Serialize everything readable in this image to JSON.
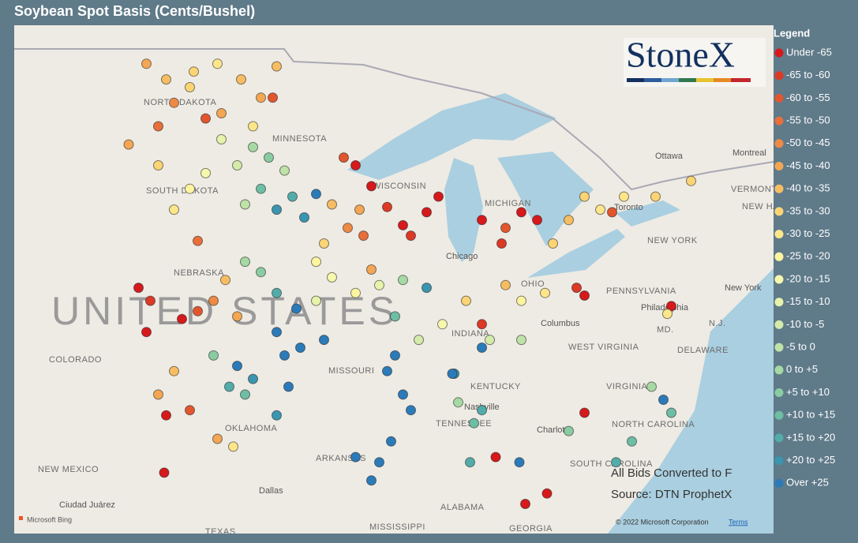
{
  "header": {
    "title": "Soybean Spot Basis (Cents/Bushel)"
  },
  "legend": {
    "title": "Legend",
    "entries": [
      {
        "label": "Under -65",
        "color": "#d7191c",
        "from": null,
        "to": -65
      },
      {
        "label": "-65 to -60",
        "color": "#dc3a25",
        "from": -65,
        "to": -60
      },
      {
        "label": "-60 to -55",
        "color": "#e2562e",
        "from": -60,
        "to": -55
      },
      {
        "label": "-55 to -50",
        "color": "#e86f3a",
        "from": -55,
        "to": -50
      },
      {
        "label": "-50 to -45",
        "color": "#ee8a45",
        "from": -50,
        "to": -45
      },
      {
        "label": "-45 to -40",
        "color": "#f3a653",
        "from": -45,
        "to": -40
      },
      {
        "label": "-40 to -35",
        "color": "#f7bd62",
        "from": -40,
        "to": -35
      },
      {
        "label": "-35 to -30",
        "color": "#fbd475",
        "from": -35,
        "to": -30
      },
      {
        "label": "-30 to -25",
        "color": "#fde68a",
        "from": -30,
        "to": -25
      },
      {
        "label": "-25 to -20",
        "color": "#fef5a0",
        "from": -25,
        "to": -20
      },
      {
        "label": "-20 to -15",
        "color": "#f6f8ad",
        "from": -20,
        "to": -15
      },
      {
        "label": "-15 to -10",
        "color": "#e7f2ab",
        "from": -15,
        "to": -10
      },
      {
        "label": "-10 to -5",
        "color": "#d4ebaa",
        "from": -10,
        "to": -5
      },
      {
        "label": "-5 to 0",
        "color": "#bfe3a6",
        "from": -5,
        "to": 0
      },
      {
        "label": "0 to +5",
        "color": "#a6d9a4",
        "from": 0,
        "to": 5
      },
      {
        "label": "+5 to +10",
        "color": "#8acca2",
        "from": 5,
        "to": 10
      },
      {
        "label": "+10 to +15",
        "color": "#6dbea4",
        "from": 10,
        "to": 15
      },
      {
        "label": "+15 to +20",
        "color": "#52aca9",
        "from": 15,
        "to": 20
      },
      {
        "label": "+20 to +25",
        "color": "#3a96b0",
        "from": 20,
        "to": 25
      },
      {
        "label": "Over +25",
        "color": "#2b7bba",
        "from": 25,
        "to": null
      }
    ]
  },
  "logo": "StoneX",
  "annotations": [
    "All Bids Converted to F",
    "Source: DTN ProphetX"
  ],
  "footer": {
    "bing": "Microsoft Bing",
    "copyright": "© 2022 Microsoft Corporation",
    "terms": "Terms"
  },
  "map_labels": [
    "NORTH DAKOTA",
    "SOUTH DAKOTA",
    "MINNESOTA",
    "WISCONSIN",
    "MICHIGAN",
    "NEBRASKA",
    "UNITED STATES",
    "COLORADO",
    "MISSOURI",
    "KENTUCKY",
    "TENNESSEE",
    "OKLAHOMA",
    "ARKANSAS",
    "NEW MEXICO",
    "ALABAMA",
    "GEORGIA",
    "MISSISSIPPI",
    "TEXAS",
    "PENNSYLVANIA",
    "NEW YORK",
    "VIRGINIA",
    "WEST VIRGINIA",
    "NORTH CAROLINA",
    "SOUTH CAROLINA",
    "DELAWARE",
    "MD.",
    "N.J.",
    "VERMONT",
    "NEW HAMPSHIRE",
    "Ottawa",
    "Montreal",
    "Toronto",
    "Chicago",
    "Columbus",
    "Philadelphia",
    "New York",
    "Nashville",
    "Charlotte",
    "Dallas",
    "Ciudad Juárez",
    "INDIANA",
    "OHIO"
  ],
  "map": {
    "points": [
      {
        "lon": -103.5,
        "lat": 49.4,
        "basis": -45
      },
      {
        "lon": -102.5,
        "lat": 48.8,
        "basis": -40
      },
      {
        "lon": -101.1,
        "lat": 49.1,
        "basis": -35
      },
      {
        "lon": -99.9,
        "lat": 49.4,
        "basis": -30
      },
      {
        "lon": -98.7,
        "lat": 48.8,
        "basis": -40
      },
      {
        "lon": -97.7,
        "lat": 48.1,
        "basis": -45
      },
      {
        "lon": -96.9,
        "lat": 49.3,
        "basis": -40
      },
      {
        "lon": -102.1,
        "lat": 47.9,
        "basis": -50
      },
      {
        "lon": -99.7,
        "lat": 47.5,
        "basis": -45
      },
      {
        "lon": -102.9,
        "lat": 47.0,
        "basis": -55
      },
      {
        "lon": -100.5,
        "lat": 47.3,
        "basis": -60
      },
      {
        "lon": -98.1,
        "lat": 47.0,
        "basis": -30
      },
      {
        "lon": -97.1,
        "lat": 48.1,
        "basis": -60
      },
      {
        "lon": -101.3,
        "lat": 48.5,
        "basis": -35
      },
      {
        "lon": -98.1,
        "lat": 46.2,
        "basis": 0
      },
      {
        "lon": -97.3,
        "lat": 45.8,
        "basis": 5
      },
      {
        "lon": -96.5,
        "lat": 45.3,
        "basis": -5
      },
      {
        "lon": -98.9,
        "lat": 45.5,
        "basis": -10
      },
      {
        "lon": -97.7,
        "lat": 44.6,
        "basis": 10
      },
      {
        "lon": -96.9,
        "lat": 43.8,
        "basis": 20
      },
      {
        "lon": -96.1,
        "lat": 44.3,
        "basis": 15
      },
      {
        "lon": -94.9,
        "lat": 44.4,
        "basis": 25
      },
      {
        "lon": -95.5,
        "lat": 43.5,
        "basis": 20
      },
      {
        "lon": -98.5,
        "lat": 44.0,
        "basis": -5
      },
      {
        "lon": -99.7,
        "lat": 46.5,
        "basis": -15
      },
      {
        "lon": -102.9,
        "lat": 45.5,
        "basis": -35
      },
      {
        "lon": -101.3,
        "lat": 44.6,
        "basis": -25
      },
      {
        "lon": -100.5,
        "lat": 45.2,
        "basis": -20
      },
      {
        "lon": -102.1,
        "lat": 43.8,
        "basis": -30
      },
      {
        "lon": -100.9,
        "lat": 42.6,
        "basis": -55
      },
      {
        "lon": -93.3,
        "lat": 43.1,
        "basis": -50
      },
      {
        "lon": -92.5,
        "lat": 42.8,
        "basis": -55
      },
      {
        "lon": -94.1,
        "lat": 44.0,
        "basis": -40
      },
      {
        "lon": -92.7,
        "lat": 43.8,
        "basis": -45
      },
      {
        "lon": -94.5,
        "lat": 42.5,
        "basis": -35
      },
      {
        "lon": -94.9,
        "lat": 41.8,
        "basis": -25
      },
      {
        "lon": -92.9,
        "lat": 45.5,
        "basis": -70
      },
      {
        "lon": -92.1,
        "lat": 44.7,
        "basis": -70
      },
      {
        "lon": -91.3,
        "lat": 43.9,
        "basis": -65
      },
      {
        "lon": -90.5,
        "lat": 43.2,
        "basis": -70
      },
      {
        "lon": -89.3,
        "lat": 43.7,
        "basis": -70
      },
      {
        "lon": -88.7,
        "lat": 44.3,
        "basis": -70
      },
      {
        "lon": -90.1,
        "lat": 42.8,
        "basis": -65
      },
      {
        "lon": -93.5,
        "lat": 45.8,
        "basis": -60
      },
      {
        "lon": -86.5,
        "lat": 43.4,
        "basis": -70
      },
      {
        "lon": -85.5,
        "lat": 42.5,
        "basis": -65
      },
      {
        "lon": -84.5,
        "lat": 43.7,
        "basis": -70
      },
      {
        "lon": -83.7,
        "lat": 43.4,
        "basis": -70
      },
      {
        "lon": -85.3,
        "lat": 43.1,
        "basis": -60
      },
      {
        "lon": -82.9,
        "lat": 42.5,
        "basis": -35
      },
      {
        "lon": -82.1,
        "lat": 43.4,
        "basis": -40
      },
      {
        "lon": -81.3,
        "lat": 44.3,
        "basis": -35
      },
      {
        "lon": -80.5,
        "lat": 43.8,
        "basis": -30
      },
      {
        "lon": -79.3,
        "lat": 44.3,
        "basis": -30
      },
      {
        "lon": -77.7,
        "lat": 44.3,
        "basis": -35
      },
      {
        "lon": -75.9,
        "lat": 44.9,
        "basis": -35
      },
      {
        "lon": -79.9,
        "lat": 43.7,
        "basis": -60
      },
      {
        "lon": -103.9,
        "lat": 40.8,
        "basis": -70
      },
      {
        "lon": -103.3,
        "lat": 40.3,
        "basis": -65
      },
      {
        "lon": -101.7,
        "lat": 39.6,
        "basis": -70
      },
      {
        "lon": -103.5,
        "lat": 39.1,
        "basis": -70
      },
      {
        "lon": -100.9,
        "lat": 39.9,
        "basis": -60
      },
      {
        "lon": -100.1,
        "lat": 40.3,
        "basis": -50
      },
      {
        "lon": -98.9,
        "lat": 39.7,
        "basis": -45
      },
      {
        "lon": -99.5,
        "lat": 41.1,
        "basis": -40
      },
      {
        "lon": -97.7,
        "lat": 41.4,
        "basis": 5
      },
      {
        "lon": -96.9,
        "lat": 40.6,
        "basis": 15
      },
      {
        "lon": -95.9,
        "lat": 40.0,
        "basis": 25
      },
      {
        "lon": -98.5,
        "lat": 41.8,
        "basis": 0
      },
      {
        "lon": -94.1,
        "lat": 41.2,
        "basis": -20
      },
      {
        "lon": -92.9,
        "lat": 40.6,
        "basis": -25
      },
      {
        "lon": -94.9,
        "lat": 40.3,
        "basis": -15
      },
      {
        "lon": -98.9,
        "lat": 37.8,
        "basis": 25
      },
      {
        "lon": -98.1,
        "lat": 37.3,
        "basis": 20
      },
      {
        "lon": -99.3,
        "lat": 37.0,
        "basis": 15
      },
      {
        "lon": -98.5,
        "lat": 36.7,
        "basis": 10
      },
      {
        "lon": -100.1,
        "lat": 38.2,
        "basis": 5
      },
      {
        "lon": -96.9,
        "lat": 39.1,
        "basis": 30
      },
      {
        "lon": -96.5,
        "lat": 38.2,
        "basis": 30
      },
      {
        "lon": -95.7,
        "lat": 38.5,
        "basis": 25
      },
      {
        "lon": -94.5,
        "lat": 38.8,
        "basis": 30
      },
      {
        "lon": -96.3,
        "lat": 37.0,
        "basis": 25
      },
      {
        "lon": -96.9,
        "lat": 35.9,
        "basis": 20
      },
      {
        "lon": -102.9,
        "lat": 36.7,
        "basis": -45
      },
      {
        "lon": -102.1,
        "lat": 37.6,
        "basis": -40
      },
      {
        "lon": -101.3,
        "lat": 36.1,
        "basis": -60
      },
      {
        "lon": -102.5,
        "lat": 35.9,
        "basis": -70
      },
      {
        "lon": -99.9,
        "lat": 35.0,
        "basis": -45
      },
      {
        "lon": -99.1,
        "lat": 34.7,
        "basis": -30
      },
      {
        "lon": -102.6,
        "lat": 33.7,
        "basis": -70
      },
      {
        "lon": -91.7,
        "lat": 40.9,
        "basis": -15
      },
      {
        "lon": -90.5,
        "lat": 41.1,
        "basis": 0
      },
      {
        "lon": -89.3,
        "lat": 40.8,
        "basis": 20
      },
      {
        "lon": -90.9,
        "lat": 39.7,
        "basis": 10
      },
      {
        "lon": -89.7,
        "lat": 38.8,
        "basis": -10
      },
      {
        "lon": -88.5,
        "lat": 39.4,
        "basis": -20
      },
      {
        "lon": -87.3,
        "lat": 40.3,
        "basis": -35
      },
      {
        "lon": -92.1,
        "lat": 41.5,
        "basis": -45
      },
      {
        "lon": -90.9,
        "lat": 38.2,
        "basis": 25
      },
      {
        "lon": -91.3,
        "lat": 37.6,
        "basis": 30
      },
      {
        "lon": -85.3,
        "lat": 40.9,
        "basis": -40
      },
      {
        "lon": -84.5,
        "lat": 40.3,
        "basis": -25
      },
      {
        "lon": -83.3,
        "lat": 40.6,
        "basis": -30
      },
      {
        "lon": -81.7,
        "lat": 40.8,
        "basis": -65
      },
      {
        "lon": -81.3,
        "lat": 40.5,
        "basis": -70
      },
      {
        "lon": -86.1,
        "lat": 38.8,
        "basis": -10
      },
      {
        "lon": -84.5,
        "lat": 38.8,
        "basis": -5
      },
      {
        "lon": -90.5,
        "lat": 36.7,
        "basis": 30
      },
      {
        "lon": -90.1,
        "lat": 36.1,
        "basis": 25
      },
      {
        "lon": -91.1,
        "lat": 34.9,
        "basis": 30
      },
      {
        "lon": -91.7,
        "lat": 34.1,
        "basis": 30
      },
      {
        "lon": -92.1,
        "lat": 33.4,
        "basis": 25
      },
      {
        "lon": -92.9,
        "lat": 34.3,
        "basis": 25
      },
      {
        "lon": -87.9,
        "lat": 37.5,
        "basis": 20
      },
      {
        "lon": -87.7,
        "lat": 36.4,
        "basis": 0
      },
      {
        "lon": -86.9,
        "lat": 35.6,
        "basis": 10
      },
      {
        "lon": -87.1,
        "lat": 34.1,
        "basis": 15
      },
      {
        "lon": -86.5,
        "lat": 38.5,
        "basis": 25
      },
      {
        "lon": -86.5,
        "lat": 36.1,
        "basis": 15
      },
      {
        "lon": -85.8,
        "lat": 34.3,
        "basis": -70
      },
      {
        "lon": -84.3,
        "lat": 32.5,
        "basis": -70
      },
      {
        "lon": -83.2,
        "lat": 32.9,
        "basis": -70
      },
      {
        "lon": -81.3,
        "lat": 36.0,
        "basis": -70
      },
      {
        "lon": -76.9,
        "lat": 40.1,
        "basis": -70
      },
      {
        "lon": -84.6,
        "lat": 34.1,
        "basis": 25
      },
      {
        "lon": -82.1,
        "lat": 35.3,
        "basis": 5
      },
      {
        "lon": -79.7,
        "lat": 34.1,
        "basis": 15
      },
      {
        "lon": -78.9,
        "lat": 34.9,
        "basis": 10
      },
      {
        "lon": -77.3,
        "lat": 36.5,
        "basis": 25
      },
      {
        "lon": -76.9,
        "lat": 36.0,
        "basis": 10
      },
      {
        "lon": -77.9,
        "lat": 37.0,
        "basis": 0
      },
      {
        "lon": -77.1,
        "lat": 39.8,
        "basis": -30
      },
      {
        "lon": -104.4,
        "lat": 46.3,
        "basis": -45
      },
      {
        "lon": -88.0,
        "lat": 37.5,
        "basis": 25
      },
      {
        "lon": -86.5,
        "lat": 39.4,
        "basis": -65
      }
    ]
  }
}
